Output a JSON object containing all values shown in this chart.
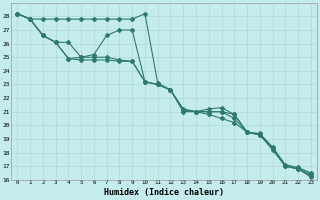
{
  "xlabel": "Humidex (Indice chaleur)",
  "bg_color": "#c5ecec",
  "grid_color": "#b0d8d8",
  "line_color": "#2d7a6e",
  "xlim": [
    -0.5,
    23.5
  ],
  "ylim": [
    16,
    29
  ],
  "xticks": [
    0,
    1,
    2,
    3,
    4,
    5,
    6,
    7,
    8,
    9,
    10,
    11,
    12,
    13,
    14,
    15,
    16,
    17,
    18,
    19,
    20,
    21,
    22,
    23
  ],
  "yticks": [
    16,
    17,
    18,
    19,
    20,
    21,
    22,
    23,
    24,
    25,
    26,
    27,
    28
  ],
  "lines": [
    [
      28.2,
      27.8,
      27.8,
      27.8,
      27.8,
      27.8,
      27.8,
      27.8,
      27.8,
      27.8,
      28.2,
      23.1,
      22.6,
      21.2,
      21.0,
      21.0,
      21.0,
      20.8,
      19.5,
      19.4,
      18.4,
      17.1,
      16.9,
      16.5
    ],
    [
      28.2,
      27.8,
      26.6,
      26.1,
      26.1,
      25.0,
      25.2,
      26.6,
      27.0,
      27.0,
      23.2,
      23.0,
      22.6,
      21.1,
      21.0,
      20.8,
      20.5,
      20.2,
      19.5,
      19.3,
      18.3,
      17.0,
      16.8,
      16.3
    ],
    [
      28.2,
      27.8,
      26.6,
      26.1,
      24.9,
      24.8,
      24.8,
      24.8,
      24.7,
      24.7,
      23.2,
      23.0,
      22.6,
      21.1,
      21.0,
      21.2,
      21.3,
      20.8,
      19.5,
      19.3,
      18.2,
      17.0,
      16.8,
      16.2
    ],
    [
      28.2,
      27.8,
      26.6,
      26.1,
      24.9,
      25.0,
      25.0,
      25.0,
      24.8,
      24.7,
      23.2,
      23.0,
      22.6,
      21.0,
      21.0,
      21.0,
      21.0,
      20.5,
      19.5,
      19.3,
      18.3,
      17.0,
      16.8,
      16.4
    ]
  ]
}
